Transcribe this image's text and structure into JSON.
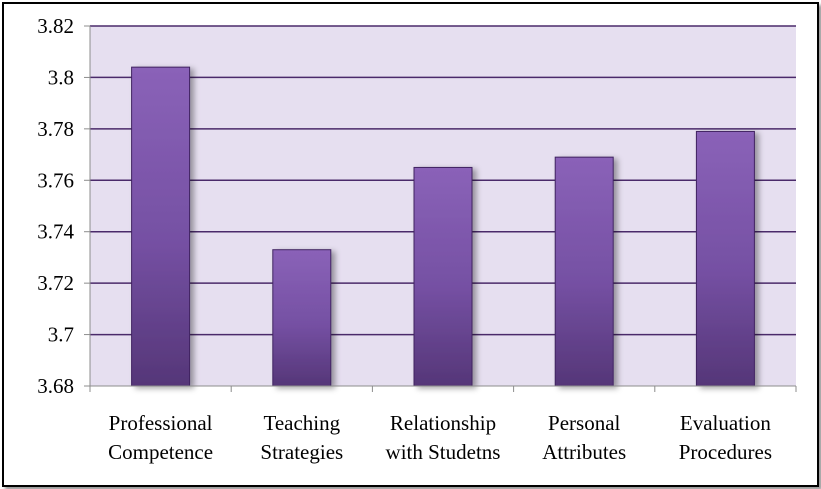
{
  "chart_data": {
    "type": "bar",
    "categories": [
      [
        "Professional",
        "Competence"
      ],
      [
        "Teaching",
        "Strategies"
      ],
      [
        "Relationship",
        "with Studetns"
      ],
      [
        "Personal",
        "Attributes"
      ],
      [
        "Evaluation",
        "Procedures"
      ]
    ],
    "values": [
      3.804,
      3.733,
      3.765,
      3.769,
      3.779
    ],
    "ylim": [
      3.68,
      3.82
    ],
    "yticks": [
      "3.68",
      "3.7",
      "3.72",
      "3.74",
      "3.76",
      "3.78",
      "3.8",
      "3.82"
    ],
    "grid": true,
    "legend": "none",
    "colors": {
      "plot_bg": "#e6dff0",
      "gridline": "#4a2a6a",
      "bar_top": "#8a62b8",
      "bar_mid": "#7a52a6",
      "bar_bottom": "#5a3a82",
      "bar_stroke": "#3f2460"
    }
  }
}
